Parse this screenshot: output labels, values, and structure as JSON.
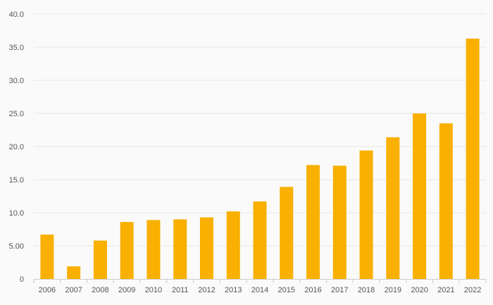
{
  "chart_data": {
    "type": "bar",
    "title": "",
    "xlabel": "",
    "ylabel": "",
    "categories": [
      "2006",
      "2007",
      "2008",
      "2009",
      "2010",
      "2011",
      "2012",
      "2013",
      "2014",
      "2015",
      "2016",
      "2017",
      "2018",
      "2019",
      "2020",
      "2021",
      "2022"
    ],
    "values": [
      6.7,
      1.9,
      5.8,
      8.6,
      8.9,
      9.0,
      9.3,
      10.2,
      11.7,
      13.9,
      17.2,
      17.1,
      19.4,
      21.4,
      25.0,
      23.5,
      36.3
    ],
    "ylim": [
      0,
      40
    ],
    "yticks": [
      0,
      5,
      10,
      15,
      20,
      25,
      30,
      35,
      40
    ],
    "ytick_labels": [
      "0",
      "5.00",
      "10.0",
      "15.0",
      "20.0",
      "25.0",
      "30.0",
      "35.0",
      "40.0"
    ],
    "grid": true,
    "legend": "none",
    "colors": {
      "bar": "#f9b000",
      "grid": "#e6e6e6",
      "axis": "#cccccc",
      "background": "#fafafa",
      "tick_text": "#555555"
    }
  }
}
